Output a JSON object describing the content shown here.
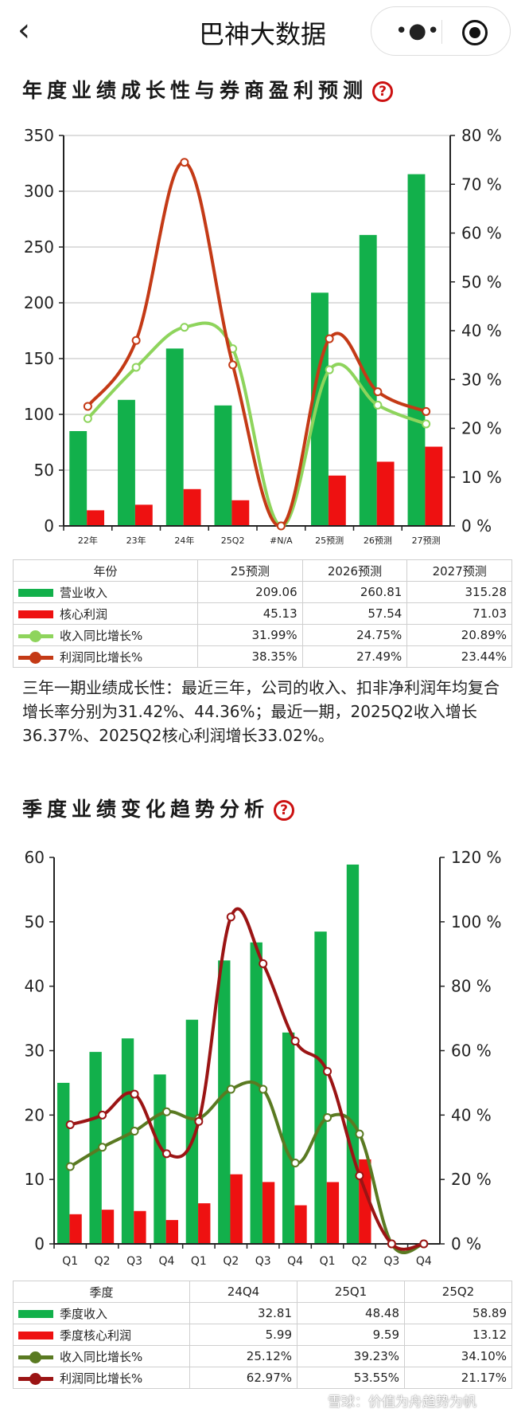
{
  "app": {
    "title": "巴神大数据",
    "back_icon": "chevron-left-icon",
    "more_icon": "more-dots-icon",
    "target_icon": "target-icon"
  },
  "section1": {
    "title": "年度业绩成长性与券商盈利预测",
    "help": "?"
  },
  "section2": {
    "title": "季度业绩变化趋势分析",
    "help": "?"
  },
  "chart_data": [
    {
      "type": "bar",
      "categories": [
        "22年",
        "23年",
        "24年",
        "25Q2",
        "#N/A",
        "25预测",
        "26预测",
        "27预测"
      ],
      "y_left": {
        "ticks": [
          "0",
          "50",
          "100",
          "150",
          "200",
          "250",
          "300",
          "350"
        ],
        "lim": [
          0,
          350
        ]
      },
      "y_right": {
        "ticks": [
          "0 %",
          "10 %",
          "20 %",
          "30 %",
          "40 %",
          "50 %",
          "60 %",
          "70 %",
          "80 %"
        ],
        "lim": [
          0,
          80
        ]
      },
      "grid": true,
      "series": [
        {
          "name": "营业收入",
          "kind": "bar",
          "axis": "left",
          "color": "#12b04b",
          "values": [
            85,
            113,
            159,
            108,
            0,
            209.06,
            260.81,
            315.28
          ]
        },
        {
          "name": "核心利润",
          "kind": "bar",
          "axis": "left",
          "color": "#ee1111",
          "values": [
            14,
            19,
            33,
            23,
            0,
            45.13,
            57.54,
            71.03
          ]
        },
        {
          "name": "收入同比增长%",
          "kind": "line",
          "axis": "right",
          "color": "#8ed45c",
          "values": [
            22,
            32.5,
            40.7,
            36.3,
            0,
            31.99,
            24.75,
            20.89
          ]
        },
        {
          "name": "利润同比增长%",
          "kind": "line",
          "axis": "right",
          "color": "#c43a16",
          "values": [
            24.5,
            38,
            74.5,
            33,
            0,
            38.35,
            27.49,
            23.44
          ]
        }
      ],
      "table": {
        "header": [
          "年份",
          "25预测",
          "2026预测",
          "2027预测"
        ],
        "rows": [
          {
            "label": "营业收入",
            "color": "#12b04b",
            "kind": "bar",
            "values": [
              "209.06",
              "260.81",
              "315.28"
            ]
          },
          {
            "label": "核心利润",
            "color": "#ee1111",
            "kind": "bar",
            "values": [
              "45.13",
              "57.54",
              "71.03"
            ]
          },
          {
            "label": "收入同比增长%",
            "color": "#8ed45c",
            "kind": "line",
            "values": [
              "31.99%",
              "24.75%",
              "20.89%"
            ]
          },
          {
            "label": "利润同比增长%",
            "color": "#c43a16",
            "kind": "line",
            "values": [
              "38.35%",
              "27.49%",
              "23.44%"
            ]
          }
        ]
      }
    },
    {
      "type": "bar",
      "categories": [
        "Q1",
        "Q2",
        "Q3",
        "Q4",
        "Q1",
        "Q2",
        "Q3",
        "Q4",
        "Q1",
        "Q2",
        "Q3",
        "Q4"
      ],
      "y_left": {
        "ticks": [
          "0",
          "10",
          "20",
          "30",
          "40",
          "50",
          "60"
        ],
        "lim": [
          0,
          60
        ]
      },
      "y_right": {
        "ticks": [
          "0 %",
          "20 %",
          "40 %",
          "60 %",
          "80 %",
          "100 %",
          "120 %"
        ],
        "lim": [
          0,
          120
        ]
      },
      "grid": false,
      "series": [
        {
          "name": "季度收入",
          "kind": "bar",
          "axis": "left",
          "color": "#12b04b",
          "values": [
            25,
            29.8,
            31.9,
            26.3,
            34.8,
            44,
            46.8,
            32.81,
            48.48,
            58.89,
            0,
            0
          ]
        },
        {
          "name": "季度核心利润",
          "kind": "bar",
          "axis": "left",
          "color": "#ee1111",
          "values": [
            4.6,
            5.3,
            5.1,
            3.7,
            6.3,
            10.8,
            9.6,
            5.99,
            9.59,
            13.12,
            0,
            0
          ]
        },
        {
          "name": "收入同比增长%",
          "kind": "line",
          "axis": "right",
          "color": "#5a7a22",
          "values": [
            24,
            30,
            35,
            41,
            39,
            48,
            48,
            25.12,
            39.23,
            34.1,
            0,
            0
          ]
        },
        {
          "name": "利润同比增长%",
          "kind": "line",
          "axis": "right",
          "color": "#9b1414",
          "values": [
            37,
            40,
            46.5,
            28,
            38,
            101.5,
            87,
            62.97,
            53.55,
            21.17,
            0,
            0
          ]
        }
      ],
      "table": {
        "header": [
          "季度",
          "24Q4",
          "25Q1",
          "25Q2"
        ],
        "rows": [
          {
            "label": "季度收入",
            "color": "#12b04b",
            "kind": "bar",
            "values": [
              "32.81",
              "48.48",
              "58.89"
            ]
          },
          {
            "label": "季度核心利润",
            "color": "#ee1111",
            "kind": "bar",
            "values": [
              "5.99",
              "9.59",
              "13.12"
            ]
          },
          {
            "label": "收入同比增长%",
            "color": "#5a7a22",
            "kind": "line",
            "values": [
              "25.12%",
              "39.23%",
              "34.10%"
            ]
          },
          {
            "label": "利润同比增长%",
            "color": "#9b1414",
            "kind": "line",
            "values": [
              "62.97%",
              "53.55%",
              "21.17%"
            ]
          }
        ]
      }
    }
  ],
  "summary": "三年一期业绩成长性：最近三年，公司的收入、扣非净利润年均复合增长率分别为31.42%、44.36%；最近一期，2025Q2收入增长36.37%、2025Q2核心利润增长33.02%。",
  "watermark": "雪球：价值为舟趋势为帆"
}
